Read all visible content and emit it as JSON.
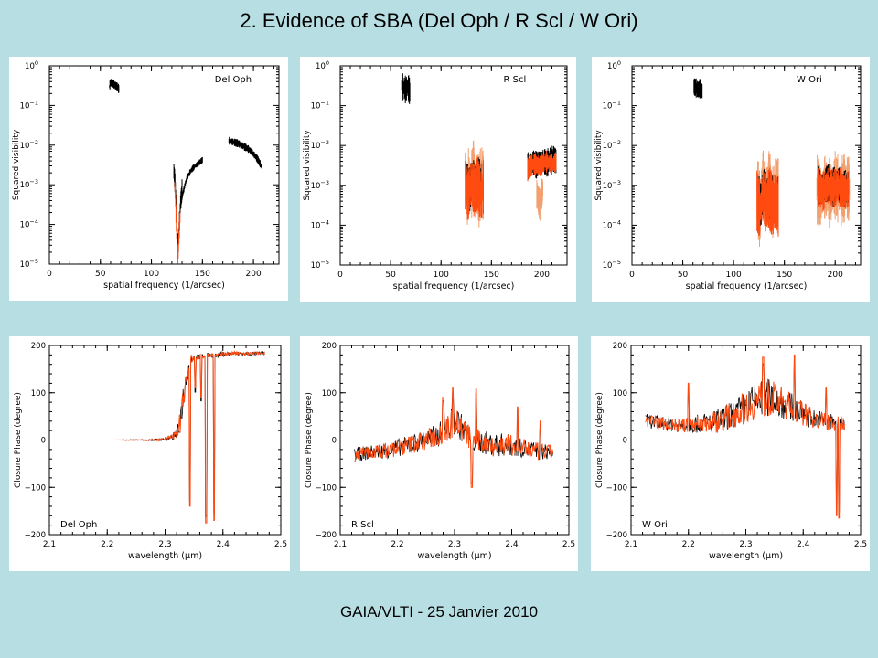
{
  "slide": {
    "title": "2. Evidence of SBA (Del Oph / R Scl / W Ori)",
    "footer": "GAIA/VLTI - 25 Janvier 2010"
  },
  "colors": {
    "background": "#b7dee3",
    "data_black": "#000000",
    "data_orange": "#ff4a10",
    "data_light": "#f2a070"
  },
  "chart_data": [
    {
      "type": "scatter",
      "title": "",
      "annotation": "Del Oph",
      "xlabel": "spatial frequency (1/arcsec)",
      "ylabel": "Squared visibility",
      "xlim": [
        0,
        225
      ],
      "ylim": [
        1e-05,
        1
      ],
      "yscale": "log",
      "xticks": [
        "0",
        "50",
        "100",
        "150",
        "200"
      ],
      "xtick_values": [
        0,
        50,
        100,
        150,
        200
      ],
      "yticks": [
        "10^-5",
        "10^-4",
        "10^-3",
        "10^-2",
        "10^-1",
        "10^0"
      ],
      "ytick_values": [
        1e-05,
        0.0001,
        0.001,
        0.01,
        0.1,
        1
      ],
      "series": [
        {
          "kind": "band",
          "color": "#000000",
          "x": [
            59,
            60,
            62,
            64,
            66,
            68
          ],
          "y": [
            0.3,
            0.38,
            0.36,
            0.33,
            0.3,
            0.26
          ],
          "spread": 0.12
        },
        {
          "kind": "band",
          "color": "#000000",
          "x": [
            122,
            123,
            124,
            125,
            126,
            127,
            128,
            129,
            130
          ],
          "y": [
            0.0022,
            0.0012,
            0.0004,
            8e-05,
            2e-05,
            6e-05,
            0.0002,
            0.0005,
            0.0008
          ],
          "spread": 0.25
        },
        {
          "kind": "band",
          "color": "#ff4a10",
          "x": [
            123,
            124,
            125,
            126,
            127,
            128
          ],
          "y": [
            0.0009,
            0.0002,
            3e-05,
            1.2e-05,
            5e-05,
            0.00015
          ],
          "spread": 0.3
        },
        {
          "kind": "band",
          "color": "#000000",
          "x": [
            129,
            132,
            135,
            140,
            145,
            150
          ],
          "y": [
            0.0003,
            0.0008,
            0.0015,
            0.0025,
            0.0033,
            0.0042
          ],
          "spread": 0.08
        },
        {
          "kind": "band",
          "color": "#000000",
          "x": [
            176,
            180,
            185,
            190,
            195,
            200,
            205,
            208
          ],
          "y": [
            0.013,
            0.012,
            0.011,
            0.0095,
            0.008,
            0.006,
            0.004,
            0.0028
          ],
          "spread": 0.1
        }
      ]
    },
    {
      "type": "scatter",
      "title": "",
      "annotation": "R Scl",
      "xlabel": "spatial frequency (1/arcsec)",
      "ylabel": "Squared visibility",
      "xlim": [
        0,
        225
      ],
      "ylim": [
        1e-05,
        1
      ],
      "yscale": "log",
      "xticks": [
        "0",
        "50",
        "100",
        "150",
        "200"
      ],
      "xtick_values": [
        0,
        50,
        100,
        150,
        200
      ],
      "yticks": [
        "10^-5",
        "10^-4",
        "10^-3",
        "10^-2",
        "10^-1",
        "10^0"
      ],
      "ytick_values": [
        1e-05,
        0.0001,
        0.001,
        0.01,
        0.1,
        1
      ],
      "series": [
        {
          "kind": "band",
          "color": "#000000",
          "x": [
            61,
            63,
            65,
            67,
            69
          ],
          "y": [
            0.32,
            0.28,
            0.25,
            0.3,
            0.22
          ],
          "spread": 0.35
        },
        {
          "kind": "band",
          "color": "#f2a070",
          "x": [
            124,
            126,
            128,
            130,
            132,
            134,
            136,
            138,
            140,
            142
          ],
          "y": [
            0.003,
            0.0004,
            0.0015,
            0.0008,
            0.002,
            0.0005,
            0.0012,
            0.0006,
            0.0015,
            0.0009
          ],
          "spread": 0.9
        },
        {
          "kind": "band",
          "color": "#000000",
          "x": [
            125,
            128,
            131,
            134,
            137,
            140
          ],
          "y": [
            0.0012,
            0.0006,
            0.0015,
            0.0008,
            0.0014,
            0.0009
          ],
          "spread": 0.6
        },
        {
          "kind": "band",
          "color": "#ff4a10",
          "x": [
            124,
            127,
            130,
            133,
            136,
            139,
            142
          ],
          "y": [
            0.001,
            0.0005,
            0.0012,
            0.0007,
            0.0011,
            0.0006,
            0.0009
          ],
          "spread": 0.7
        },
        {
          "kind": "band",
          "color": "#000000",
          "x": [
            186,
            190,
            195,
            200,
            205,
            210,
            214
          ],
          "y": [
            0.003,
            0.004,
            0.0032,
            0.0045,
            0.0035,
            0.005,
            0.004
          ],
          "spread": 0.35
        },
        {
          "kind": "band",
          "color": "#ff4a10",
          "x": [
            186,
            192,
            198,
            204,
            210,
            214
          ],
          "y": [
            0.0025,
            0.0035,
            0.003,
            0.004,
            0.0033,
            0.0038
          ],
          "spread": 0.3
        },
        {
          "kind": "band",
          "color": "#f2a070",
          "x": [
            195,
            198,
            201
          ],
          "y": [
            0.0006,
            0.0003,
            0.0008
          ],
          "spread": 0.4
        }
      ]
    },
    {
      "type": "scatter",
      "title": "",
      "annotation": "W Ori",
      "xlabel": "spatial frequency (1/arcsec)",
      "ylabel": "Squared visibility",
      "xlim": [
        0,
        225
      ],
      "ylim": [
        1e-05,
        1
      ],
      "yscale": "log",
      "xticks": [
        "0",
        "50",
        "100",
        "150",
        "200"
      ],
      "xtick_values": [
        0,
        50,
        100,
        150,
        200
      ],
      "yticks": [
        "10^-5",
        "10^-4",
        "10^-3",
        "10^-2",
        "10^-1",
        "10^0"
      ],
      "ytick_values": [
        1e-05,
        0.0001,
        0.001,
        0.01,
        0.1,
        1
      ],
      "series": [
        {
          "kind": "band",
          "color": "#000000",
          "x": [
            61,
            63,
            65,
            67,
            69
          ],
          "y": [
            0.3,
            0.28,
            0.25,
            0.27,
            0.23
          ],
          "spread": 0.25
        },
        {
          "kind": "band",
          "color": "#f2a070",
          "x": [
            123,
            126,
            129,
            132,
            135,
            138,
            141,
            144
          ],
          "y": [
            0.0006,
            0.0002,
            0.001,
            0.0004,
            0.0008,
            0.0003,
            0.0007,
            0.0005
          ],
          "spread": 1.0
        },
        {
          "kind": "band",
          "color": "#000000",
          "x": [
            124,
            127,
            130,
            133,
            136,
            140,
            144
          ],
          "y": [
            0.0005,
            0.0003,
            0.0008,
            0.0004,
            0.0006,
            0.0004,
            0.0005
          ],
          "spread": 0.6
        },
        {
          "kind": "band",
          "color": "#ff4a10",
          "x": [
            123,
            126,
            129,
            132,
            135,
            138,
            141,
            144
          ],
          "y": [
            0.0004,
            0.0002,
            0.0006,
            0.0003,
            0.0005,
            0.0003,
            0.0004,
            0.0003
          ],
          "spread": 0.8
        },
        {
          "kind": "band",
          "color": "#f2a070",
          "x": [
            182,
            186,
            190,
            195,
            200,
            205,
            210,
            214
          ],
          "y": [
            0.0008,
            0.0005,
            0.0009,
            0.0006,
            0.001,
            0.0007,
            0.0009,
            0.0008
          ],
          "spread": 0.9
        },
        {
          "kind": "band",
          "color": "#000000",
          "x": [
            183,
            188,
            193,
            198,
            203,
            208,
            213
          ],
          "y": [
            0.001,
            0.0008,
            0.0012,
            0.0009,
            0.0011,
            0.0008,
            0.0009
          ],
          "spread": 0.5
        },
        {
          "kind": "band",
          "color": "#ff4a10",
          "x": [
            183,
            188,
            193,
            198,
            203,
            208,
            213
          ],
          "y": [
            0.0009,
            0.0007,
            0.001,
            0.0008,
            0.001,
            0.0007,
            0.0008
          ],
          "spread": 0.5
        }
      ]
    },
    {
      "type": "line",
      "title": "",
      "annotation": "Del Oph",
      "xlabel": "wavelength (μm)",
      "ylabel": "Closure Phase (degree)",
      "xlim": [
        2.1,
        2.5
      ],
      "ylim": [
        -200,
        200
      ],
      "xticks": [
        "2.1",
        "2.2",
        "2.3",
        "2.4",
        "2.5"
      ],
      "xtick_values": [
        2.1,
        2.2,
        2.3,
        2.4,
        2.5
      ],
      "yticks": [
        "−200",
        "−100",
        "0",
        "100",
        "200"
      ],
      "ytick_values": [
        -200,
        -100,
        0,
        100,
        200
      ],
      "series": [
        {
          "kind": "signal",
          "x": [
            2.125,
            2.15,
            2.18,
            2.21,
            2.24,
            2.26,
            2.28,
            2.3,
            2.31,
            2.32,
            2.325,
            2.33,
            2.335,
            2.34,
            2.345,
            2.35,
            2.36,
            2.37,
            2.38,
            2.39,
            2.4,
            2.42,
            2.44,
            2.46,
            2.47
          ],
          "y": [
            0,
            0,
            0,
            0,
            0,
            0,
            0,
            2,
            5,
            12,
            30,
            80,
            120,
            150,
            170,
            175,
            176,
            178,
            180,
            178,
            182,
            183,
            182,
            183,
            184
          ],
          "noise": [
            0,
            0,
            0,
            0,
            1,
            1,
            2,
            3,
            5,
            10,
            25,
            30,
            25,
            15,
            10,
            6,
            6,
            5,
            5,
            5,
            5,
            4,
            4,
            4,
            4
          ],
          "spikes": [
            [
              2.343,
              -140
            ],
            [
              2.371,
              -175
            ],
            [
              2.385,
              -170
            ],
            [
              2.362,
              90
            ],
            [
              2.352,
              110
            ]
          ]
        }
      ]
    },
    {
      "type": "line",
      "title": "",
      "annotation": "R Scl",
      "xlabel": "wavelength (μm)",
      "ylabel": "Closure Phase (degree)",
      "xlim": [
        2.1,
        2.5
      ],
      "ylim": [
        -200,
        200
      ],
      "xticks": [
        "2.1",
        "2.2",
        "2.3",
        "2.4",
        "2.5"
      ],
      "xtick_values": [
        2.1,
        2.2,
        2.3,
        2.4,
        2.5
      ],
      "yticks": [
        "−200",
        "−100",
        "0",
        "100",
        "200"
      ],
      "ytick_values": [
        -200,
        -100,
        0,
        100,
        200
      ],
      "series": [
        {
          "kind": "signal",
          "x": [
            2.13,
            2.16,
            2.19,
            2.22,
            2.25,
            2.27,
            2.29,
            2.3,
            2.31,
            2.33,
            2.35,
            2.37,
            2.39,
            2.41,
            2.43,
            2.45,
            2.47
          ],
          "y": [
            -30,
            -25,
            -20,
            -10,
            0,
            10,
            25,
            45,
            30,
            0,
            -5,
            -10,
            -10,
            -15,
            -20,
            -25,
            -25
          ],
          "noise": [
            15,
            15,
            18,
            20,
            22,
            25,
            30,
            35,
            30,
            25,
            25,
            25,
            25,
            20,
            20,
            18,
            15
          ],
          "spikes": [
            [
              2.297,
              110
            ],
            [
              2.338,
              108
            ],
            [
              2.33,
              -100
            ],
            [
              2.41,
              70
            ],
            [
              2.45,
              40
            ],
            [
              2.28,
              90
            ]
          ]
        }
      ]
    },
    {
      "type": "line",
      "title": "",
      "annotation": "W Ori",
      "xlabel": "wavelength (μm)",
      "ylabel": "Closure Phase (degree)",
      "xlim": [
        2.1,
        2.5
      ],
      "ylim": [
        -200,
        200
      ],
      "xticks": [
        "2.1",
        "2.2",
        "2.3",
        "2.4",
        "2.5"
      ],
      "xtick_values": [
        2.1,
        2.2,
        2.3,
        2.4,
        2.5
      ],
      "yticks": [
        "−200",
        "−100",
        "0",
        "100",
        "200"
      ],
      "ytick_values": [
        -200,
        -100,
        0,
        100,
        200
      ],
      "series": [
        {
          "kind": "signal",
          "x": [
            2.13,
            2.16,
            2.19,
            2.22,
            2.25,
            2.28,
            2.3,
            2.32,
            2.34,
            2.36,
            2.38,
            2.4,
            2.42,
            2.44,
            2.46,
            2.47
          ],
          "y": [
            40,
            35,
            30,
            35,
            40,
            55,
            70,
            85,
            90,
            80,
            70,
            55,
            45,
            40,
            35,
            35
          ],
          "noise": [
            15,
            15,
            15,
            20,
            25,
            30,
            35,
            40,
            40,
            35,
            30,
            25,
            20,
            20,
            20,
            15
          ],
          "spikes": [
            [
              2.458,
              -160
            ],
            [
              2.462,
              -165
            ],
            [
              2.33,
              175
            ],
            [
              2.385,
              180
            ],
            [
              2.2,
              120
            ],
            [
              2.44,
              110
            ]
          ]
        }
      ]
    }
  ]
}
